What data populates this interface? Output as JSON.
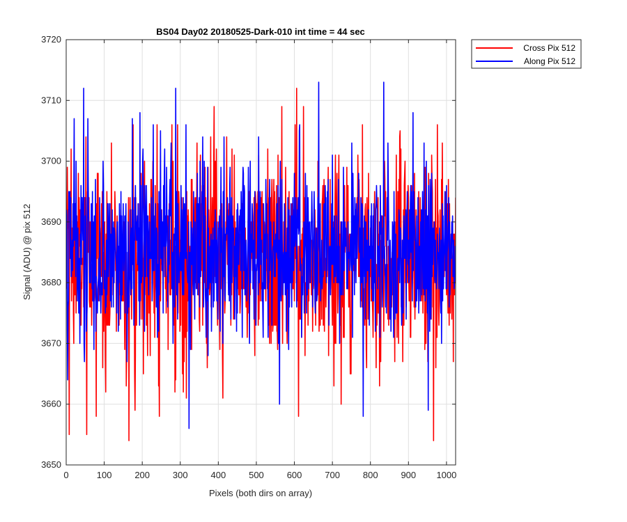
{
  "chart_data": {
    "type": "line",
    "title": "BS04 Day02 20180525-Dark-010 int time = 44 sec",
    "xlabel": "Pixels (both dirs on array)",
    "ylabel": "Signal (ADU) @ pix 512",
    "xlim": [
      0,
      1024
    ],
    "ylim": [
      3650,
      3720
    ],
    "xticks": [
      0,
      100,
      200,
      300,
      400,
      500,
      600,
      700,
      800,
      900,
      1000
    ],
    "yticks": [
      3650,
      3660,
      3670,
      3680,
      3690,
      3700,
      3710,
      3720
    ],
    "grid": true,
    "legend_position": "outside-top-right",
    "n_points": 1024,
    "series": [
      {
        "name": "Cross Pix 512",
        "color": "#ff0000",
        "mean": 3684,
        "std": 8,
        "peaks": [
          [
            7,
            3655
          ],
          [
            12,
            3702
          ],
          [
            53,
            3655
          ],
          [
            78,
            3658
          ],
          [
            164,
            3654
          ],
          [
            175,
            3706
          ],
          [
            180,
            3659
          ],
          [
            238,
            3706
          ],
          [
            244,
            3658
          ],
          [
            292,
            3706
          ],
          [
            388,
            3709
          ],
          [
            566,
            3709
          ],
          [
            601,
            3706
          ],
          [
            605,
            3712
          ],
          [
            610,
            3658
          ],
          [
            623,
            3709
          ],
          [
            722,
            3660
          ],
          [
            778,
            3706
          ],
          [
            877,
            3705
          ],
          [
            965,
            3654
          ],
          [
            975,
            3706
          ]
        ]
      },
      {
        "name": "Along Pix 512",
        "color": "#0000ff",
        "mean": 3685,
        "std": 7,
        "peaks": [
          [
            3,
            3664
          ],
          [
            20,
            3707
          ],
          [
            45,
            3712
          ],
          [
            173,
            3707
          ],
          [
            193,
            3708
          ],
          [
            228,
            3706
          ],
          [
            247,
            3705
          ],
          [
            287,
            3712
          ],
          [
            322,
            3656
          ],
          [
            358,
            3704
          ],
          [
            560,
            3660
          ],
          [
            612,
            3705
          ],
          [
            663,
            3713
          ],
          [
            780,
            3658
          ],
          [
            834,
            3713
          ],
          [
            845,
            3703
          ],
          [
            911,
            3708
          ],
          [
            940,
            3703
          ],
          [
            951,
            3659
          ],
          [
            1005,
            3694
          ]
        ]
      }
    ]
  }
}
